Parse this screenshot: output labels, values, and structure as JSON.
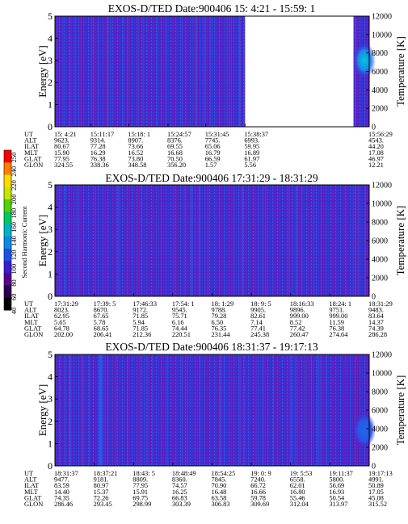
{
  "figure": {
    "colorbar": {
      "label": "Second Harmonic Current",
      "ticks": [
        "40",
        "60",
        "80",
        "100",
        "120",
        "140",
        "160",
        "180",
        "200",
        "220",
        "240",
        "250"
      ],
      "colors": [
        "#000000",
        "#2a0050",
        "#5a0090",
        "#3c1cd0",
        "#1c50e8",
        "#0a8ce6",
        "#00b4c8",
        "#00c860",
        "#50d200",
        "#c8e600",
        "#ffdc00",
        "#ff8000",
        "#ff0000"
      ]
    },
    "row_labels": [
      "UT",
      "ALT",
      "ILAT",
      "MLT",
      "GLAT",
      "GLON"
    ]
  },
  "chart_data": [
    {
      "type": "heatmap",
      "title": "EXOS-D/TED   Date:900406  15: 4:21 - 15:59: 1",
      "ylabel": "Energy [eV]",
      "y2label": "Temperature [K]",
      "ylim": [
        0,
        5
      ],
      "yticks": [
        "0",
        "1",
        "2",
        "3",
        "4",
        "5"
      ],
      "y2lim": [
        0,
        12000
      ],
      "y2ticks": [
        "0",
        "2000",
        "4000",
        "6000",
        "8000",
        "10000",
        "12000"
      ],
      "data_gaps": [
        [
          0.605,
          0.95
        ]
      ],
      "hotspot": {
        "t": 1.0,
        "energy": 3.0,
        "level": "cyan"
      },
      "columns": [
        {
          "t": 0.0,
          "UT": "15: 4:21",
          "ALT": "9623.",
          "ILAT": "80.67",
          "MLT": "15.90",
          "GLAT": "77.95",
          "GLON": "324.55"
        },
        {
          "t": 0.115,
          "UT": "15:11:17",
          "ALT": "9314.",
          "ILAT": "77.28",
          "MLT": "16.29",
          "GLAT": "76.38",
          "GLON": "338.36"
        },
        {
          "t": 0.235,
          "UT": "15:18: 1",
          "ALT": "8907.",
          "ILAT": "73.66",
          "MLT": "16.52",
          "GLAT": "73.80",
          "GLON": "348.58"
        },
        {
          "t": 0.36,
          "UT": "15:24:57",
          "ALT": "8376.",
          "ILAT": "69.55",
          "MLT": "16.68",
          "GLAT": "70.50",
          "GLON": "356.20"
        },
        {
          "t": 0.48,
          "UT": "15:31:45",
          "ALT": "7745.",
          "ILAT": "65.06",
          "MLT": "16.79",
          "GLAT": "66.59",
          "GLON": "1.57"
        },
        {
          "t": 0.605,
          "UT": "15:38:37",
          "ALT": "6993.",
          "ILAT": "59.95",
          "MLT": "16.89",
          "GLAT": "61.97",
          "GLON": "5.56"
        },
        {
          "t": 1.0,
          "UT": "15:56:29",
          "ALT": "4543.",
          "ILAT": "44.20",
          "MLT": "17.08",
          "GLAT": "46.97",
          "GLON": "12.21"
        }
      ]
    },
    {
      "type": "heatmap",
      "title": "EXOS-D/TED   Date:900406  17:31:29 - 18:31:29",
      "ylabel": "Energy [eV]",
      "y2label": "Temperature [K]",
      "ylim": [
        0,
        5
      ],
      "yticks": [
        "0",
        "1",
        "2",
        "3",
        "4",
        "5"
      ],
      "y2lim": [
        0,
        12000
      ],
      "y2ticks": [
        "0",
        "2000",
        "4000",
        "6000",
        "8000",
        "10000",
        "12000"
      ],
      "data_gaps": [],
      "columns": [
        {
          "t": 0.0,
          "UT": "17:31:29",
          "ALT": "8023.",
          "ILAT": "62.95",
          "MLT": "5.65",
          "GLAT": "64.78",
          "GLON": "202.00"
        },
        {
          "t": 0.125,
          "UT": "17:39: 5",
          "ALT": "8670.",
          "ILAT": "67.65",
          "MLT": "5.78",
          "GLAT": "68.65",
          "GLON": "206.41"
        },
        {
          "t": 0.25,
          "UT": "17:46:33",
          "ALT": "9172.",
          "ILAT": "71.85",
          "MLT": "5.94",
          "GLAT": "71.85",
          "GLON": "212.36"
        },
        {
          "t": 0.375,
          "UT": "17:54: 1",
          "ALT": "9545.",
          "ILAT": "75.71",
          "MLT": "6.16",
          "GLAT": "74.44",
          "GLON": "220.51"
        },
        {
          "t": 0.5,
          "UT": "18: 1:29",
          "ALT": "9788.",
          "ILAT": "79.28",
          "MLT": "6.50",
          "GLAT": "76.35",
          "GLON": "231.44"
        },
        {
          "t": 0.625,
          "UT": "18: 9: 5",
          "ALT": "9905.",
          "ILAT": "82.61",
          "MLT": "7.14",
          "GLAT": "77.41",
          "GLON": "245.38"
        },
        {
          "t": 0.75,
          "UT": "18:16:33",
          "ALT": "9896.",
          "ILAT": "999.00",
          "MLT": "8.52",
          "GLAT": "77.42",
          "GLON": "260.47"
        },
        {
          "t": 0.875,
          "UT": "18:24: 1",
          "ALT": "9751.",
          "ILAT": "999.00",
          "MLT": "11.59",
          "GLAT": "76.38",
          "GLON": "274.64"
        },
        {
          "t": 1.0,
          "UT": "18:31:29",
          "ALT": "9483.",
          "ILAT": "83.64",
          "MLT": "14.37",
          "GLAT": "74.39",
          "GLON": "286.28"
        }
      ]
    },
    {
      "type": "heatmap",
      "title": "EXOS-D/TED   Date:900406  18:31:37 - 19:17:13",
      "ylabel": "Energy [eV]",
      "y2label": "Temperature [K]",
      "ylim": [
        0,
        5
      ],
      "yticks": [
        "0",
        "1",
        "2",
        "3",
        "4",
        "5"
      ],
      "y2lim": [
        0,
        12000
      ],
      "y2ticks": [
        "0",
        "2000",
        "4000",
        "6000",
        "8000",
        "10000",
        "12000"
      ],
      "data_gaps": [],
      "hotspot": {
        "t": 1.0,
        "energy": 1.6,
        "level": "blue"
      },
      "columns": [
        {
          "t": 0.0,
          "UT": "18:31:37",
          "ALT": "9477.",
          "ILAT": "83.59",
          "MLT": "14.40",
          "GLAT": "74.35",
          "GLON": "286.46"
        },
        {
          "t": 0.125,
          "UT": "18:37:21",
          "ALT": "9181.",
          "ILAT": "80.97",
          "MLT": "15.37",
          "GLAT": "72.26",
          "GLON": "293.45"
        },
        {
          "t": 0.25,
          "UT": "18:43: 5",
          "ALT": "8809.",
          "ILAT": "77.95",
          "MLT": "15.91",
          "GLAT": "69.75",
          "GLON": "298.99"
        },
        {
          "t": 0.375,
          "UT": "18:48:49",
          "ALT": "8360.",
          "ILAT": "74.57",
          "MLT": "16.25",
          "GLAT": "66.83",
          "GLON": "303.39"
        },
        {
          "t": 0.5,
          "UT": "18:54:25",
          "ALT": "7845.",
          "ILAT": "70.90",
          "MLT": "16.48",
          "GLAT": "63.58",
          "GLON": "306.83"
        },
        {
          "t": 0.625,
          "UT": "19: 0: 9",
          "ALT": "7240.",
          "ILAT": "66.72",
          "MLT": "16.66",
          "GLAT": "59.78",
          "GLON": "309.69"
        },
        {
          "t": 0.75,
          "UT": "19: 5:53",
          "ALT": "6558.",
          "ILAT": "62.01",
          "MLT": "16.80",
          "GLAT": "55.46",
          "GLON": "312.04"
        },
        {
          "t": 0.875,
          "UT": "19:11:37",
          "ALT": "5800.",
          "ILAT": "56.69",
          "MLT": "16.93",
          "GLAT": "50.54",
          "GLON": "313.97"
        },
        {
          "t": 1.0,
          "UT": "19:17:13",
          "ALT": "4991.",
          "ILAT": "50.89",
          "MLT": "17.05",
          "GLAT": "45.08",
          "GLON": "315.52"
        }
      ]
    }
  ]
}
